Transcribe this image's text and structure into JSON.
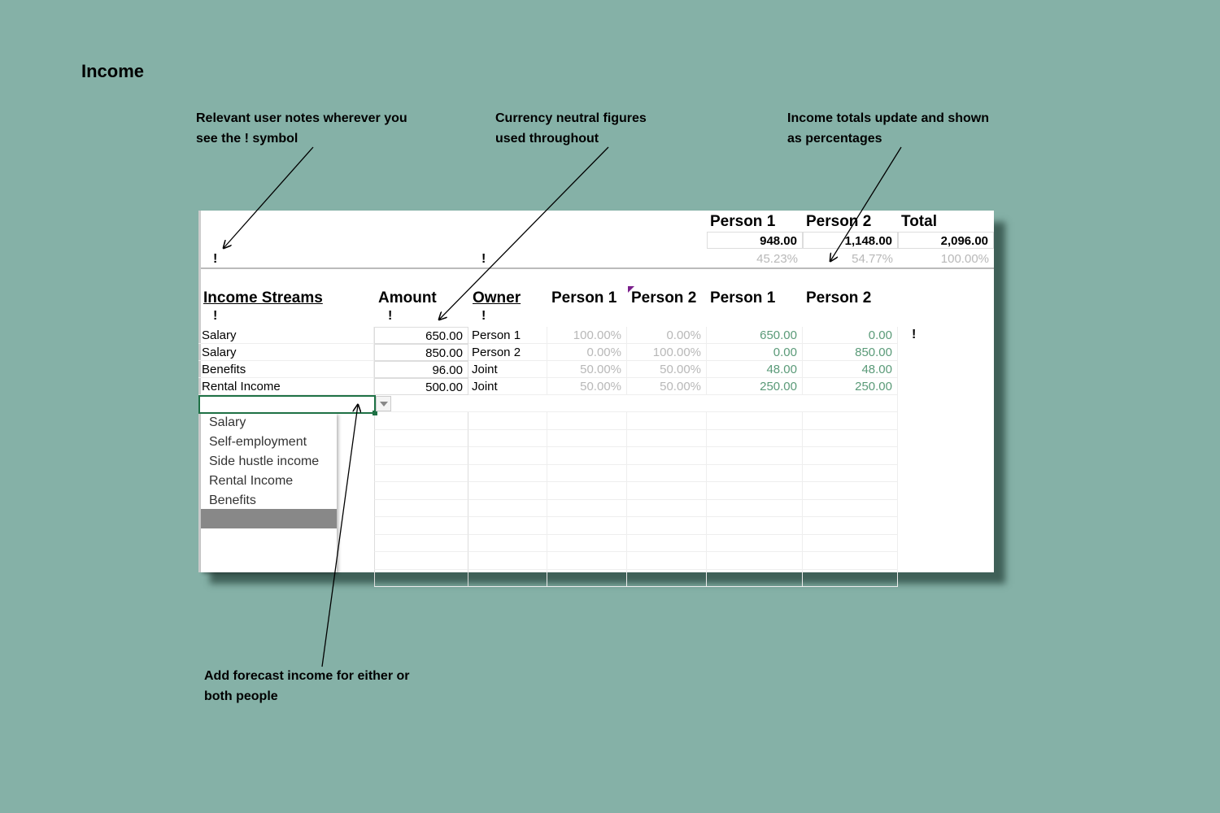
{
  "title": "Income",
  "notes": {
    "user_notes": [
      "Relevant user notes wherever you",
      "see the ! symbol"
    ],
    "currency": [
      "Currency neutral figures",
      "used throughout"
    ],
    "totals": [
      "Income totals update and shown",
      "as percentages"
    ],
    "forecast": [
      "Add forecast income for either or",
      "both people"
    ]
  },
  "summary": {
    "headers": [
      "Person 1",
      "Person 2",
      "Total"
    ],
    "amounts": [
      "948.00",
      "1,148.00",
      "2,096.00"
    ],
    "percentages": [
      "45.23%",
      "54.77%",
      "100.00%"
    ]
  },
  "table": {
    "headers": [
      "Income Streams",
      "Amount",
      "Owner",
      "Person 1",
      "Person 2",
      "Person 1",
      "Person 2"
    ],
    "note_symbol": "!",
    "rows": [
      [
        "Salary",
        "650.00",
        "Person 1",
        "100.00%",
        "0.00%",
        "650.00",
        "0.00"
      ],
      [
        "Salary",
        "850.00",
        "Person 2",
        "0.00%",
        "100.00%",
        "0.00",
        "850.00"
      ],
      [
        "Benefits",
        "96.00",
        "Joint",
        "50.00%",
        "50.00%",
        "48.00",
        "48.00"
      ],
      [
        "Rental Income",
        "500.00",
        "Joint",
        "50.00%",
        "50.00%",
        "250.00",
        "250.00"
      ]
    ]
  },
  "dropdown": {
    "options": [
      "Salary",
      "Self-employment",
      "Side hustle income",
      "Rental Income",
      "Benefits"
    ]
  },
  "colors": {
    "background": "#85b1a7",
    "share_value": "#5a9a78",
    "selection": "#1e7145",
    "comment_marker": "#7b1f8c"
  }
}
